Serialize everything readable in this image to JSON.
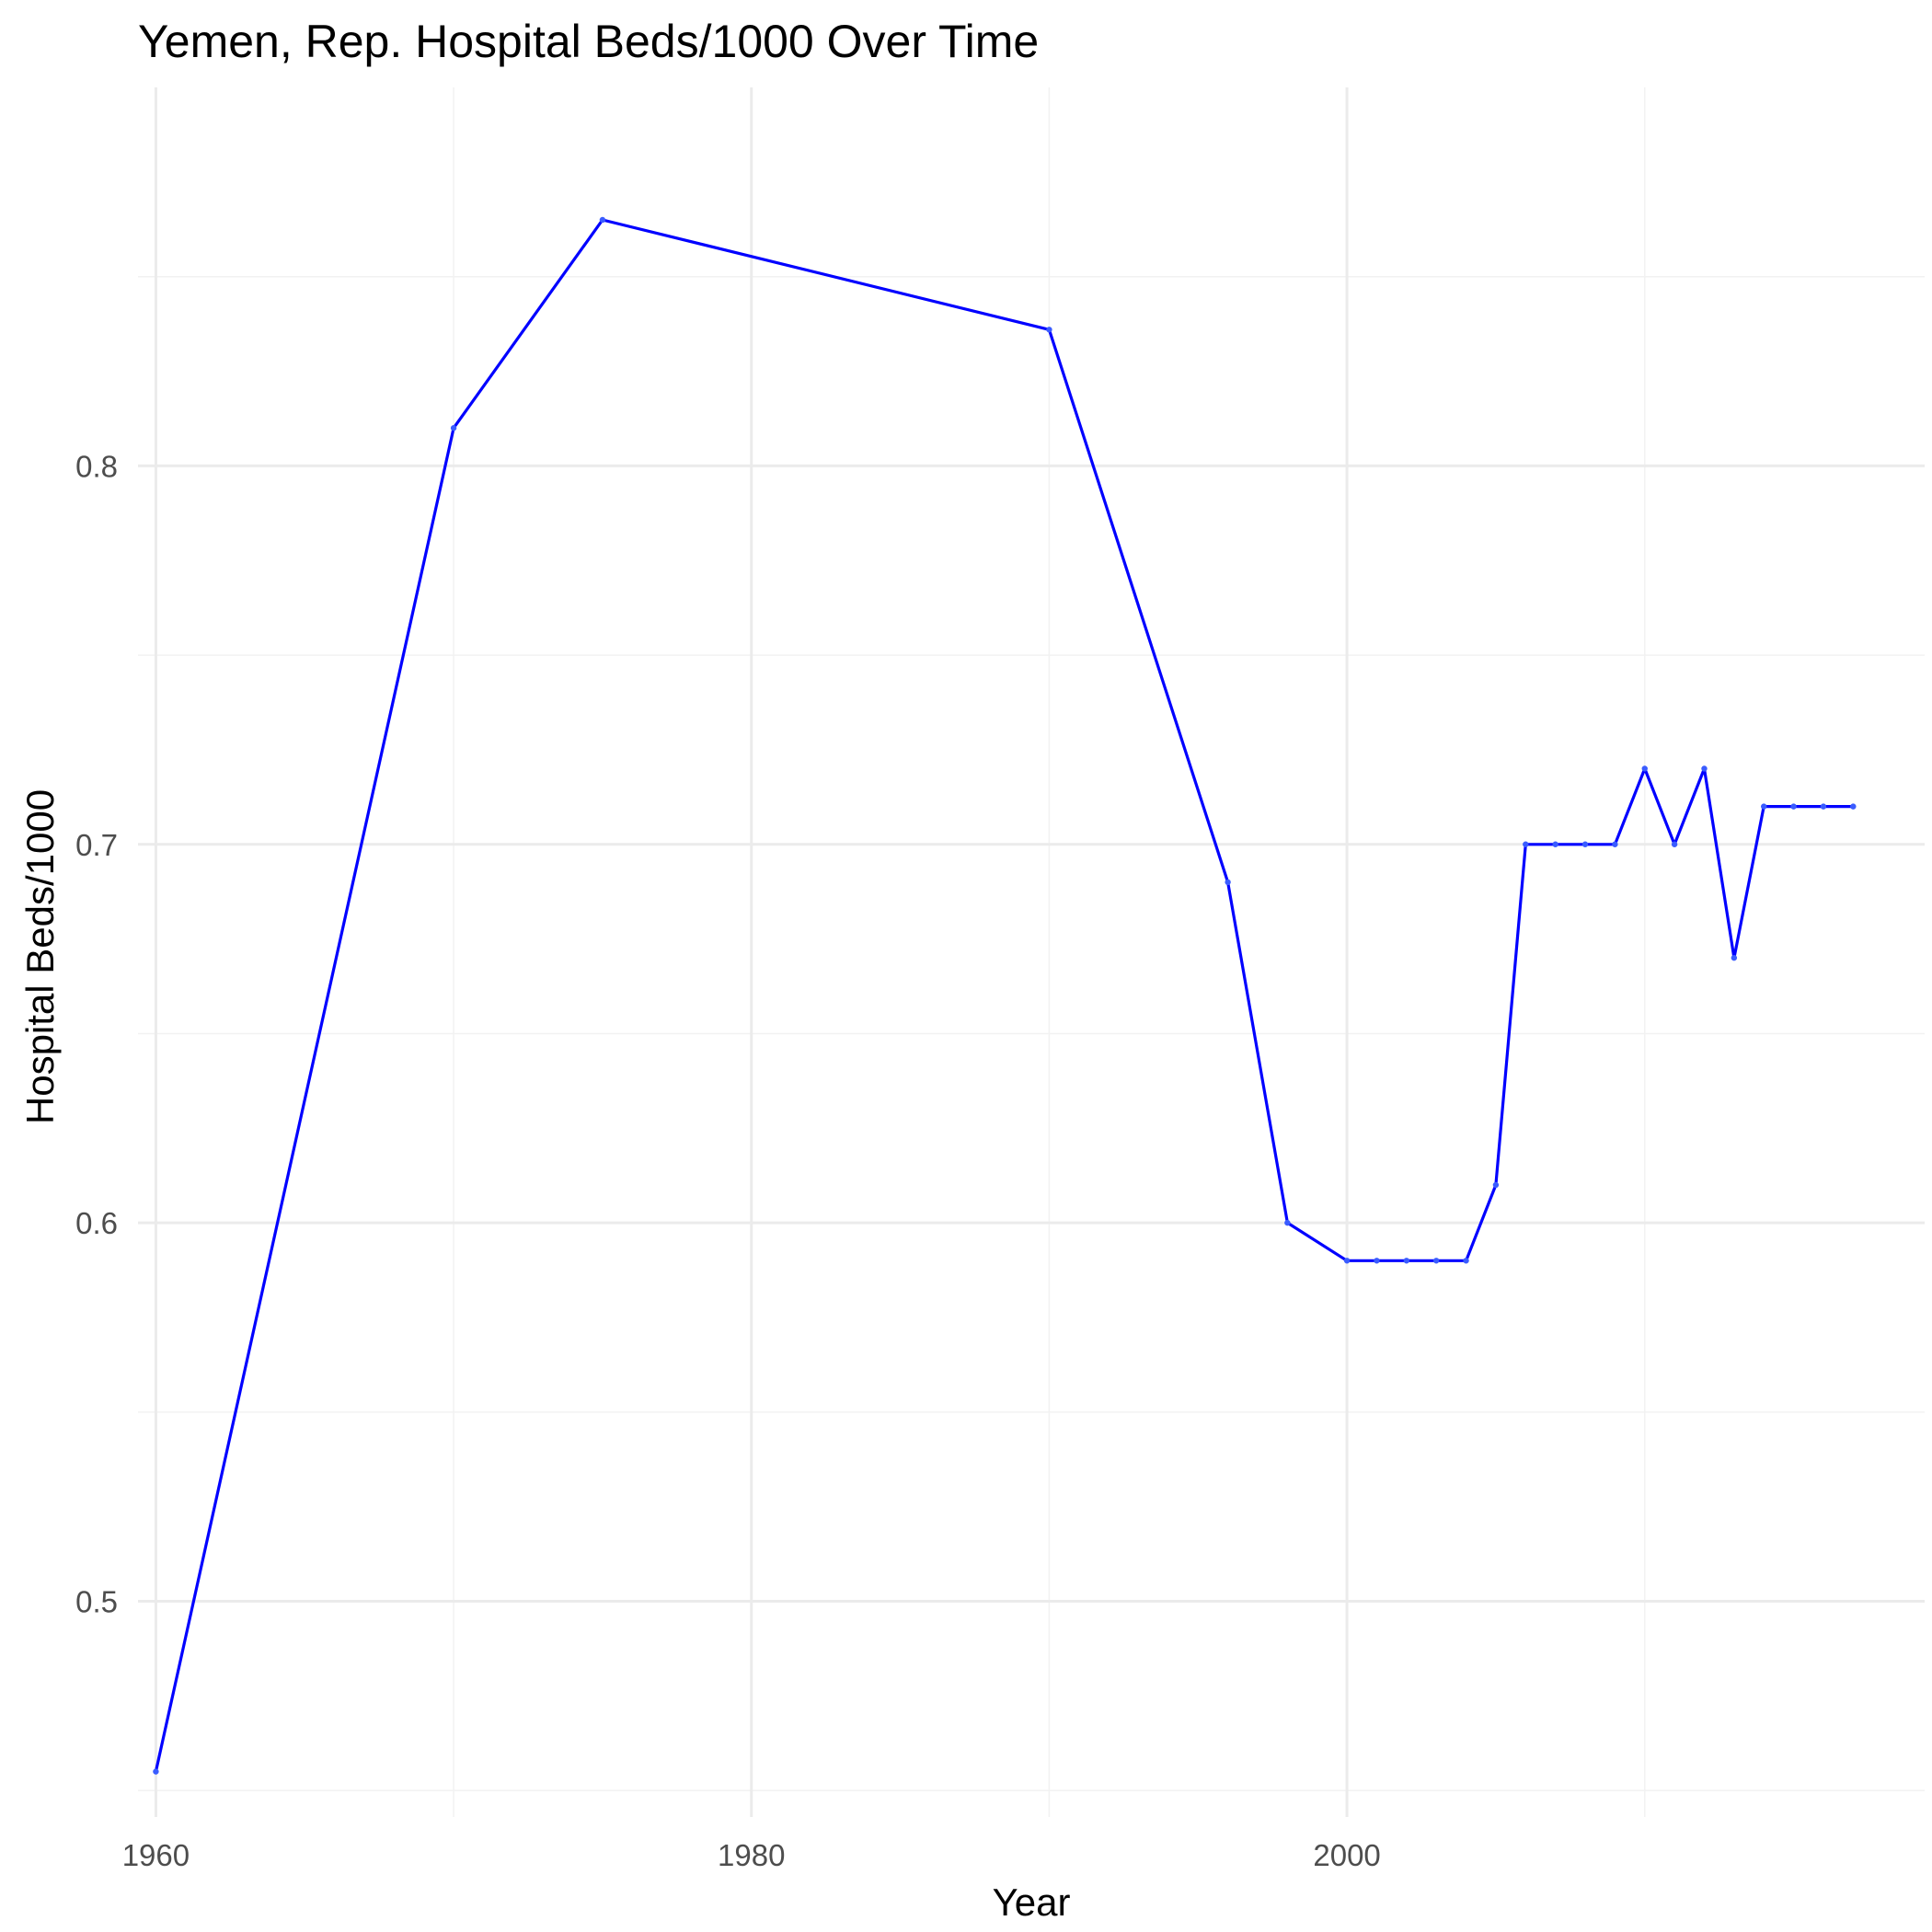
{
  "chart_data": {
    "type": "line",
    "title": "Yemen, Rep. Hospital Beds/1000 Over Time",
    "xlabel": "Year",
    "ylabel": "Hospital Beds/1000",
    "xlim": [
      1959.4,
      2019.4
    ],
    "ylim": [
      0.443,
      0.9
    ],
    "x_ticks": [
      1960,
      1980,
      2000
    ],
    "x_minor_ticks": [
      1970,
      1990,
      2010
    ],
    "y_ticks": [
      0.5,
      0.6,
      0.7,
      0.8
    ],
    "y_tick_labels": [
      "0.5",
      "0.6",
      "0.7",
      "0.8"
    ],
    "y_minor_ticks": [
      0.45,
      0.55,
      0.65,
      0.75,
      0.85
    ],
    "grid": true,
    "legend": "none",
    "line_color": "#0000ff",
    "series": [
      {
        "x": [
          1960,
          1970,
          1975,
          1990,
          1996,
          1998,
          2000,
          2001,
          2002,
          2003,
          2004,
          2005,
          2006,
          2007,
          2008,
          2009,
          2010,
          2011,
          2012,
          2013,
          2014,
          2015,
          2016,
          2017
        ],
        "values": [
          0.455,
          0.81,
          0.865,
          0.836,
          0.69,
          0.6,
          0.59,
          0.59,
          0.59,
          0.59,
          0.59,
          0.61,
          0.7,
          0.7,
          0.7,
          0.7,
          0.72,
          0.7,
          0.72,
          0.67,
          0.71,
          0.71,
          0.71,
          0.71
        ]
      }
    ]
  }
}
